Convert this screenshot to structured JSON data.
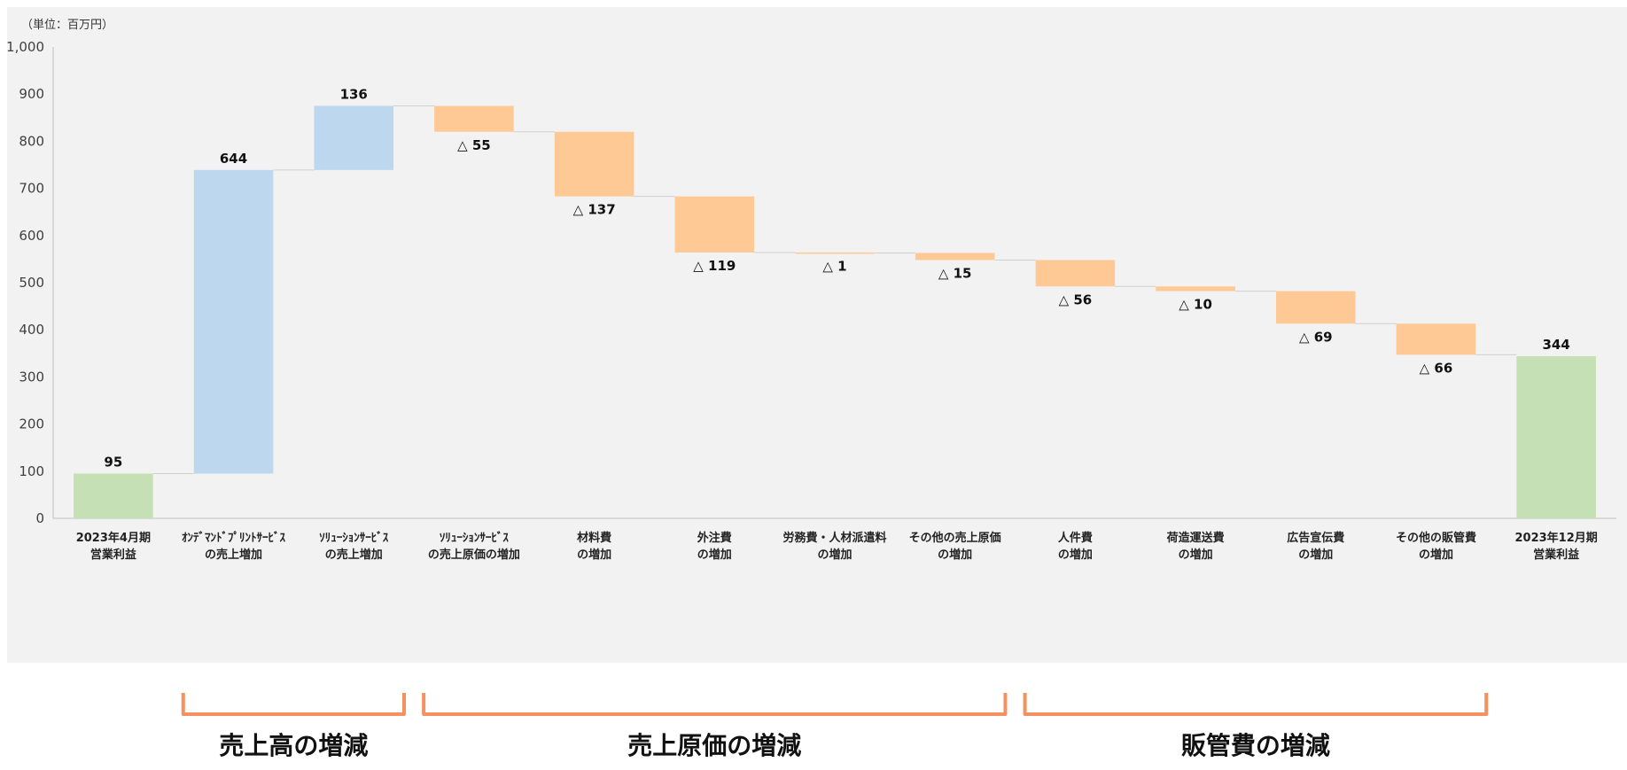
{
  "chart_data": {
    "type": "waterfall",
    "unit_label": "（単位：百万円）",
    "ylim": [
      0,
      1000
    ],
    "yticks": [
      0,
      100,
      200,
      300,
      400,
      500,
      600,
      700,
      800,
      900,
      1000
    ],
    "ytick_labels": [
      "0",
      "100",
      "200",
      "300",
      "400",
      "500",
      "600",
      "700",
      "800",
      "900",
      "1,000"
    ],
    "grid": false,
    "colors": {
      "total": "#c5e0b4",
      "increase": "#bdd7ee",
      "decrease": "#ffc995",
      "background": "#f2f2f2",
      "axis": "#bfbfbf",
      "bracket": "#f4915e"
    },
    "items": [
      {
        "line1": "2023年4月期",
        "line2": "営業利益",
        "kind": "total",
        "value": 95,
        "label": "95"
      },
      {
        "line1": "ｵﾝﾃﾞﾏﾝﾄﾞﾌﾟﾘﾝﾄｻｰﾋﾞｽ",
        "line2": "の売上増加",
        "kind": "increase",
        "value": 644,
        "label": "644"
      },
      {
        "line1": "ｿﾘｭｰｼｮﾝｻｰﾋﾞｽ",
        "line2": "の売上増加",
        "kind": "increase",
        "value": 136,
        "label": "136"
      },
      {
        "line1": "ｿﾘｭｰｼｮﾝｻｰﾋﾞｽ",
        "line2": "の売上原価の増加",
        "kind": "decrease",
        "value": -55,
        "label": "△ 55"
      },
      {
        "line1": "材料費",
        "line2": "の増加",
        "kind": "decrease",
        "value": -137,
        "label": "△ 137"
      },
      {
        "line1": "外注費",
        "line2": "の増加",
        "kind": "decrease",
        "value": -119,
        "label": "△ 119"
      },
      {
        "line1": "労務費・人材派遣料",
        "line2": "の増加",
        "kind": "decrease",
        "value": -1,
        "label": "△ 1"
      },
      {
        "line1": "その他の売上原価",
        "line2": "の増加",
        "kind": "decrease",
        "value": -15,
        "label": "△ 15"
      },
      {
        "line1": "人件費",
        "line2": "の増加",
        "kind": "decrease",
        "value": -56,
        "label": "△ 56"
      },
      {
        "line1": "荷造運送費",
        "line2": "の増加",
        "kind": "decrease",
        "value": -10,
        "label": "△ 10"
      },
      {
        "line1": "広告宣伝費",
        "line2": "の増加",
        "kind": "decrease",
        "value": -69,
        "label": "△ 69"
      },
      {
        "line1": "その他の販管費",
        "line2": "の増加",
        "kind": "decrease",
        "value": -66,
        "label": "△ 66"
      },
      {
        "line1": "2023年12月期",
        "line2": "営業利益",
        "kind": "total",
        "value": 344,
        "label": "344"
      }
    ],
    "groups": [
      {
        "label": "売上高の増減",
        "from": 1,
        "to": 2
      },
      {
        "label": "売上原価の増減",
        "from": 3,
        "to": 7
      },
      {
        "label": "販管費の増減",
        "from": 8,
        "to": 11
      }
    ]
  }
}
